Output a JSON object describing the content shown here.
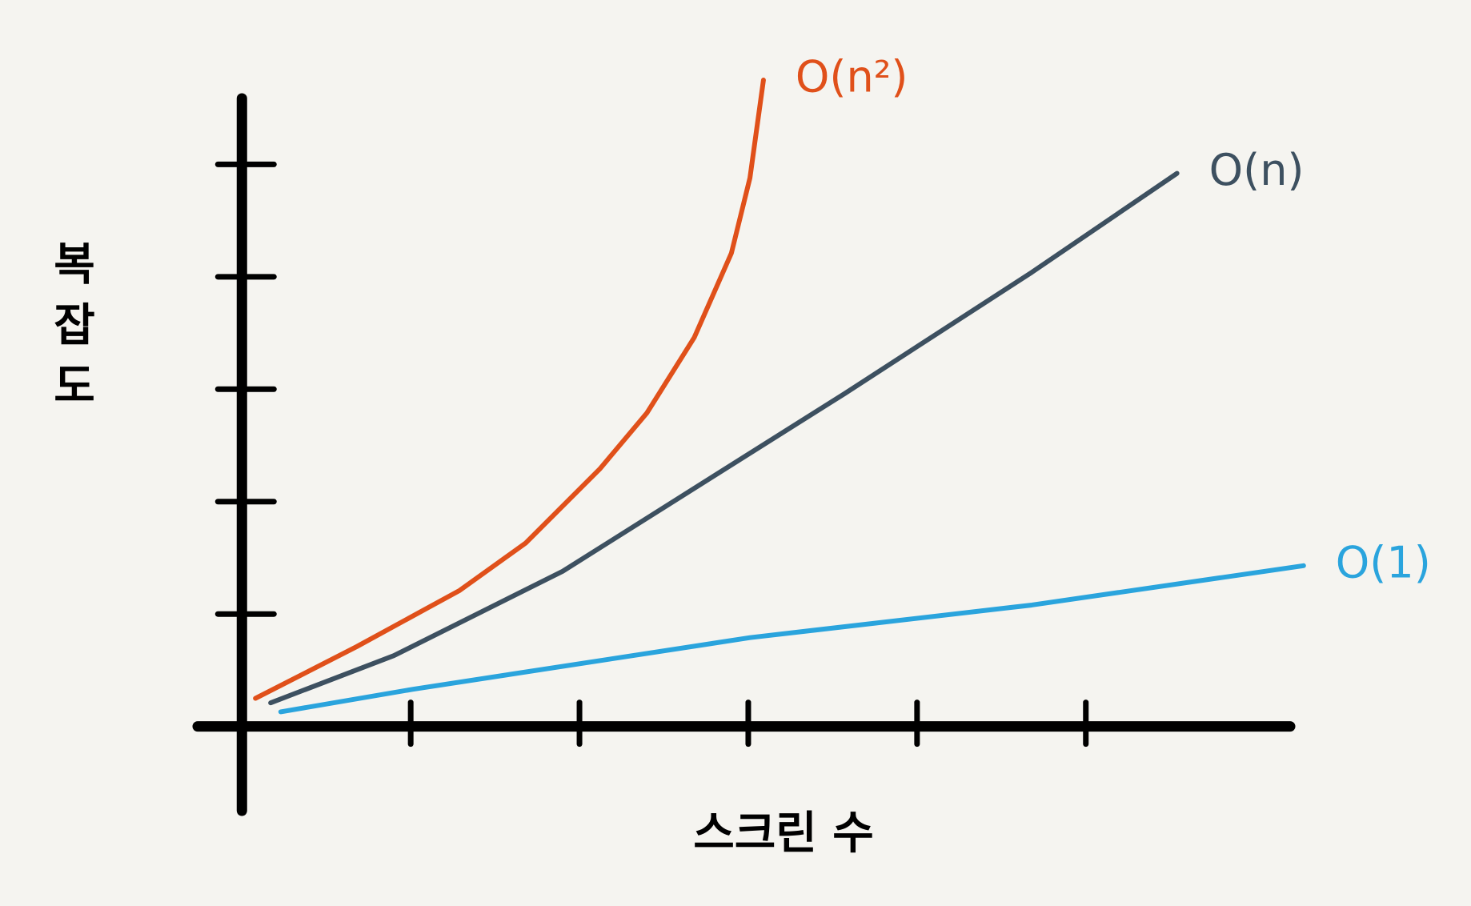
{
  "chart_data": {
    "type": "line",
    "x_label": "스크린 수",
    "y_label": "복잡도",
    "xlim": [
      -0.3,
      6.4
    ],
    "ylim": [
      -0.75,
      5.8
    ],
    "xticks": [
      1,
      2,
      3,
      4,
      5
    ],
    "yticks": [
      1,
      2,
      3,
      4,
      5
    ],
    "series": [
      {
        "name": "O(n²)",
        "color": "#e0501a",
        "x": [
          0.08,
          0.68,
          1.29,
          1.68,
          2.12,
          2.4,
          2.68,
          2.9,
          3.01,
          3.09
        ],
        "values": [
          0.25,
          0.71,
          1.21,
          1.63,
          2.29,
          2.79,
          3.46,
          4.21,
          4.88,
          5.75
        ]
      },
      {
        "name": "O(n)",
        "color": "#3d5060",
        "x": [
          0.17,
          0.9,
          1.9,
          3.57,
          4.68,
          5.54
        ],
        "values": [
          0.21,
          0.63,
          1.38,
          2.96,
          4.04,
          4.92
        ]
      },
      {
        "name": "O(1)",
        "color": "#2aa4dd",
        "x": [
          0.23,
          1.01,
          3.01,
          4.68,
          6.29
        ],
        "values": [
          0.13,
          0.33,
          0.79,
          1.08,
          1.43
        ]
      }
    ]
  }
}
